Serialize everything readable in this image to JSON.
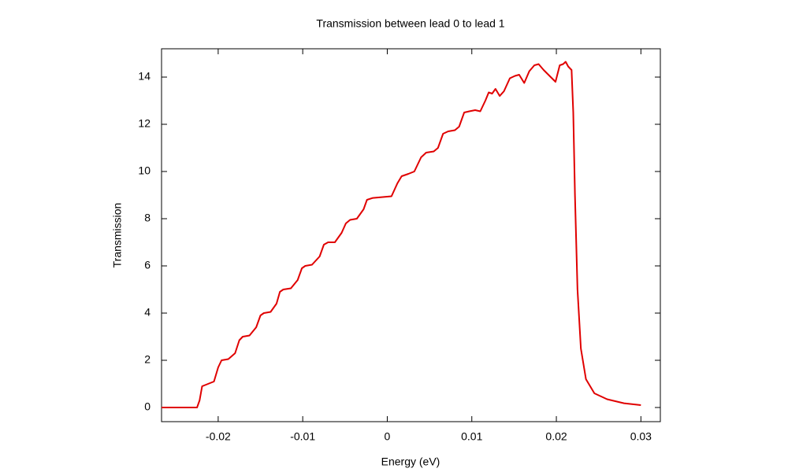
{
  "chart_data": {
    "type": "line",
    "title": "Transmission between lead 0 to lead 1",
    "xlabel": "Energy (eV)",
    "ylabel": "Transmission",
    "color": "#e00000",
    "x": [
      -0.0267,
      -0.0225,
      -0.0222,
      -0.0219,
      -0.0212,
      -0.0205,
      -0.02,
      -0.0196,
      -0.0188,
      -0.018,
      -0.0175,
      -0.0171,
      -0.0163,
      -0.0155,
      -0.015,
      -0.0146,
      -0.0138,
      -0.0131,
      -0.0127,
      -0.0123,
      -0.0114,
      -0.0106,
      -0.0101,
      -0.0097,
      -0.0089,
      -0.008,
      -0.0075,
      -0.007,
      -0.0062,
      -0.0054,
      -0.0049,
      -0.0044,
      -0.0036,
      -0.0028,
      -0.0024,
      -0.0017,
      0.0005,
      0.0012,
      0.0017,
      0.0025,
      0.0032,
      0.004,
      0.0046,
      0.0055,
      0.006,
      0.0066,
      0.0072,
      0.008,
      0.0085,
      0.0091,
      0.0097,
      0.0104,
      0.011,
      0.0116,
      0.012,
      0.0124,
      0.0128,
      0.0133,
      0.0138,
      0.0145,
      0.0151,
      0.0156,
      0.0162,
      0.0168,
      0.0174,
      0.0179,
      0.0185,
      0.0199,
      0.0204,
      0.0208,
      0.0211,
      0.0214,
      0.0218,
      0.022,
      0.0222,
      0.0225,
      0.0229,
      0.0235,
      0.0245,
      0.026,
      0.028,
      0.03
    ],
    "values": [
      0,
      0,
      0.3,
      0.9,
      1.0,
      1.1,
      1.7,
      2.0,
      2.05,
      2.3,
      2.85,
      3.0,
      3.05,
      3.4,
      3.9,
      4.0,
      4.05,
      4.4,
      4.9,
      5.0,
      5.05,
      5.4,
      5.9,
      6.0,
      6.05,
      6.4,
      6.9,
      7.0,
      7.0,
      7.4,
      7.8,
      7.95,
      8.0,
      8.4,
      8.8,
      8.88,
      8.95,
      9.5,
      9.8,
      9.9,
      10.0,
      10.6,
      10.8,
      10.85,
      11.0,
      11.6,
      11.7,
      11.75,
      11.9,
      12.5,
      12.55,
      12.6,
      12.55,
      13.0,
      13.35,
      13.3,
      13.5,
      13.2,
      13.4,
      13.95,
      14.05,
      14.1,
      13.75,
      14.25,
      14.5,
      14.55,
      14.3,
      13.8,
      14.5,
      14.55,
      14.65,
      14.45,
      14.3,
      12.5,
      9.0,
      5.0,
      2.5,
      1.2,
      0.6,
      0.35,
      0.18,
      0.1
    ],
    "xlim": [
      -0.0267,
      0.0323
    ],
    "ylim": [
      -0.6,
      15.2
    ],
    "xticks": [
      -0.02,
      -0.01,
      0,
      0.01,
      0.02,
      0.03
    ],
    "yticks": [
      0,
      2,
      4,
      6,
      8,
      10,
      12,
      14
    ]
  }
}
